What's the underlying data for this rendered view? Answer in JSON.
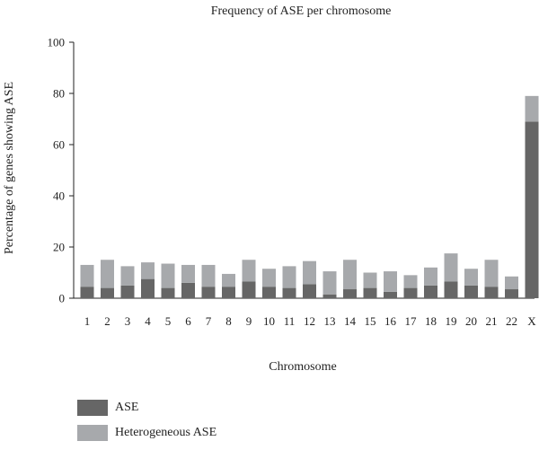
{
  "chart_data": {
    "type": "bar",
    "stacked": true,
    "title": "Frequency of ASE per chromosome",
    "xlabel": "Chromosome",
    "ylabel": "Percentage of genes showing ASE",
    "ylim": [
      0,
      100
    ],
    "yticks": [
      0,
      20,
      40,
      60,
      80,
      100
    ],
    "grid": false,
    "legend_position": "bottom-left",
    "categories": [
      "1",
      "2",
      "3",
      "4",
      "5",
      "6",
      "7",
      "8",
      "9",
      "10",
      "11",
      "12",
      "13",
      "14",
      "15",
      "16",
      "17",
      "18",
      "19",
      "20",
      "21",
      "22",
      "X"
    ],
    "series": [
      {
        "name": "ASE",
        "color": "#666666",
        "values": [
          4.5,
          4,
          5,
          7.5,
          4,
          6,
          4.5,
          4.5,
          6.5,
          4.5,
          4,
          5.5,
          1.5,
          3.5,
          4,
          2.5,
          4,
          5,
          6.5,
          5,
          4.5,
          3.5,
          69
        ]
      },
      {
        "name": "Heterogeneous ASE",
        "color": "#a7a9ac",
        "values": [
          8.5,
          11,
          7.5,
          6.5,
          9.5,
          7,
          8.5,
          5,
          8.5,
          7,
          8.5,
          9,
          9,
          11.5,
          6,
          8,
          5,
          7,
          11,
          6.5,
          10.5,
          5,
          10
        ]
      }
    ]
  }
}
